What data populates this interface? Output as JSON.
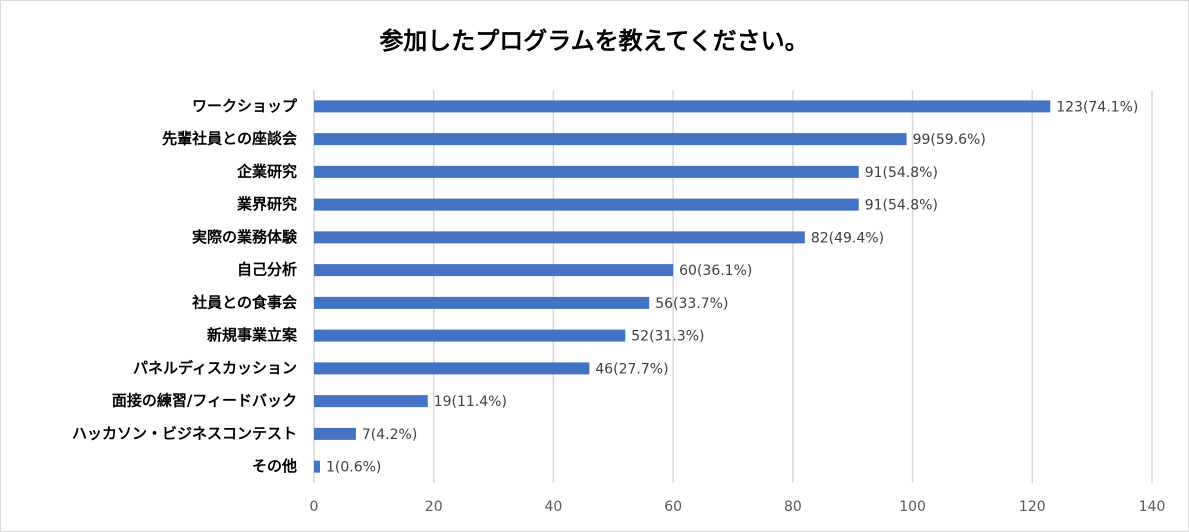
{
  "chart_data": {
    "type": "bar",
    "orientation": "horizontal",
    "title": "参加したプログラムを教えてください。",
    "categories": [
      "ワークショップ",
      "先輩社員との座談会",
      "企業研究",
      "業界研究",
      "実際の業務体験",
      "自己分析",
      "社員との食事会",
      "新規事業立案",
      "パネルディスカッション",
      "面接の練習/フィードバック",
      "ハッカソン・ビジネスコンテスト",
      "その他"
    ],
    "values": [
      123,
      99,
      91,
      91,
      82,
      60,
      56,
      52,
      46,
      19,
      7,
      1
    ],
    "value_labels": [
      "123(74.1%)",
      "99(59.6%)",
      "91(54.8%)",
      "91(54.8%)",
      "82(49.4%)",
      "60(36.1%)",
      "56(33.7%)",
      "52(31.3%)",
      "46(27.7%)",
      "19(11.4%)",
      "7(4.2%)",
      "1(0.6%)"
    ],
    "color": "#4472c4",
    "xlim": [
      0,
      140
    ],
    "xticks": [
      0,
      20,
      40,
      60,
      80,
      100,
      120,
      140
    ],
    "grid": true
  }
}
